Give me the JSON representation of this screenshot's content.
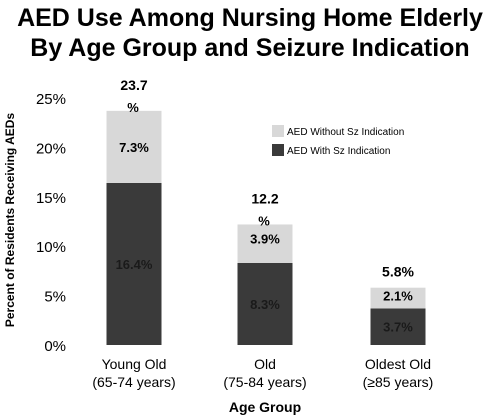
{
  "colors": {
    "with_sz": "#3a3a3a",
    "without_sz": "#d8d8d8",
    "text": "#000000"
  },
  "chart_data": {
    "type": "bar",
    "stacked": true,
    "title": "AED Use Among Nursing Home Elderly",
    "subtitle": "By Age Group and Seizure Indication",
    "xlabel": "Age Group",
    "ylabel": "Percent of Residents Receiving AEDs",
    "ylim": [
      0,
      25
    ],
    "yticks": [
      0,
      5,
      10,
      15,
      20,
      25
    ],
    "ytick_labels": [
      "0%",
      "5%",
      "10%",
      "15%",
      "20%",
      "25%"
    ],
    "grid": false,
    "legend_position": "top-right",
    "categories": [
      {
        "line1": "Young Old",
        "line2": "(65-74 years)"
      },
      {
        "line1": "Old",
        "line2": "(75-84 years)"
      },
      {
        "line1": "Oldest Old",
        "line2": "(≥85 years)"
      }
    ],
    "series": [
      {
        "name": "AED With Sz Indication",
        "values": [
          16.4,
          8.3,
          3.7
        ],
        "labels": [
          "16.4%",
          "8.3%",
          "3.7%"
        ]
      },
      {
        "name": "AED Without Sz Indication",
        "values": [
          7.3,
          3.9,
          2.1
        ],
        "labels": [
          "7.3%",
          "3.9%",
          "2.1%"
        ]
      }
    ],
    "totals": [
      {
        "line1": "23.7",
        "line2": "%"
      },
      {
        "line1": "12.2",
        "line2": "%"
      },
      {
        "line1": "5.8%",
        "line2": ""
      }
    ]
  }
}
